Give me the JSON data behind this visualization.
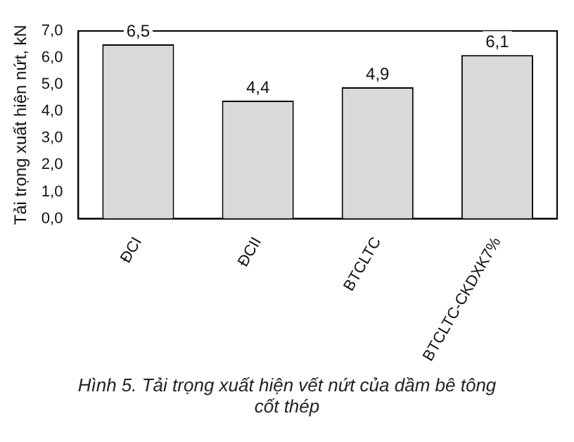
{
  "chart_data": {
    "type": "bar",
    "ylabel": "Tải trọng xuất hiện nứt, kN",
    "categories": [
      "ĐCI",
      "ĐCII",
      "BTCLTC",
      "BTCLTC-CKDXK7%"
    ],
    "values": [
      6.5,
      4.4,
      4.9,
      6.1
    ],
    "value_labels": [
      "6,5",
      "4,4",
      "4,9",
      "6,1"
    ],
    "color": "#d9d9d9",
    "ylim": [
      0,
      7
    ],
    "yticks": [
      {
        "value": 0,
        "label": "0,0"
      },
      {
        "value": 1,
        "label": "1,0"
      },
      {
        "value": 2,
        "label": "2,0"
      },
      {
        "value": 3,
        "label": "3,0"
      },
      {
        "value": 4,
        "label": "4,0"
      },
      {
        "value": 5,
        "label": "5,0"
      },
      {
        "value": 6,
        "label": "6,0"
      },
      {
        "value": 7,
        "label": "7,0"
      }
    ],
    "grid": false,
    "legend": false,
    "annotations": [
      "Hình 5. Tải trọng xuất hiện vết nứt của dầm bê tông cốt thép"
    ]
  }
}
